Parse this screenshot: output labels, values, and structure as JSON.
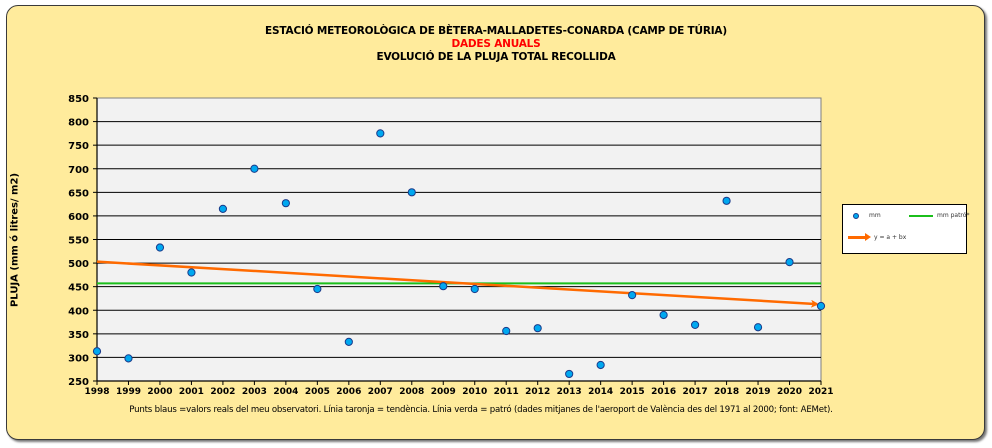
{
  "chart_data": {
    "type": "scatter",
    "title": "ESTACIÓ METEOROLÒGICA DE BÈTERA-MALLADETES-CONARDA (CAMP DE TÚRIA)",
    "subtitle": "DADES ANUALS",
    "subtitle2": "EVOLUCIÓ DE LA PLUJA TOTAL RECOLLIDA",
    "xlabel": "",
    "ylabel": "PLUJA (mm ó litres/ m2)",
    "x": [
      1998,
      1999,
      2000,
      2001,
      2002,
      2003,
      2004,
      2005,
      2006,
      2007,
      2008,
      2009,
      2010,
      2011,
      2012,
      2013,
      2014,
      2015,
      2016,
      2017,
      2018,
      2019,
      2020,
      2021
    ],
    "x_tick_labels": [
      "1998",
      "1999",
      "2000",
      "2001",
      "2002",
      "2003",
      "2004",
      "2005",
      "2006",
      "2007",
      "2008",
      "2009",
      "2010",
      "2011",
      "2012",
      "2013",
      "2014",
      "2015",
      "2016",
      "2017",
      "2018",
      "2019",
      "2020",
      "2021"
    ],
    "ylim": [
      250,
      850
    ],
    "y_ticks": [
      850,
      800,
      750,
      700,
      650,
      600,
      550,
      500,
      450,
      400,
      350,
      300,
      250
    ],
    "y_tick_labels": [
      "850",
      "800",
      "750",
      "700",
      "650",
      "600",
      "550",
      "500",
      "450",
      "400",
      "350",
      "300",
      "250"
    ],
    "grid": true,
    "series": [
      {
        "name": "mm",
        "kind": "points",
        "color": "#00a8f0",
        "values": [
          313,
          298,
          533,
          480,
          615,
          700,
          627,
          445,
          333,
          775,
          650,
          451,
          445,
          356,
          362,
          265,
          284,
          432,
          390,
          369,
          632,
          364,
          502,
          409
        ]
      },
      {
        "name": "mm patró*",
        "kind": "hline",
        "color": "#1bbf1b",
        "value": 457
      },
      {
        "name": "y = a + bx",
        "kind": "trend",
        "color": "#ff6a00",
        "start": [
          1998,
          503
        ],
        "end": [
          2021,
          413
        ]
      }
    ],
    "legend_position": "right",
    "legend": [
      "mm",
      "mm patró*",
      "y = a + bx"
    ],
    "footnote": "Punts blaus =valors reals del meu observatori. Línia taronja = tendència. Línia verda = patró (dades mitjanes de l'aeroport de València des del 1971 al 2000; font: AEMet)."
  }
}
